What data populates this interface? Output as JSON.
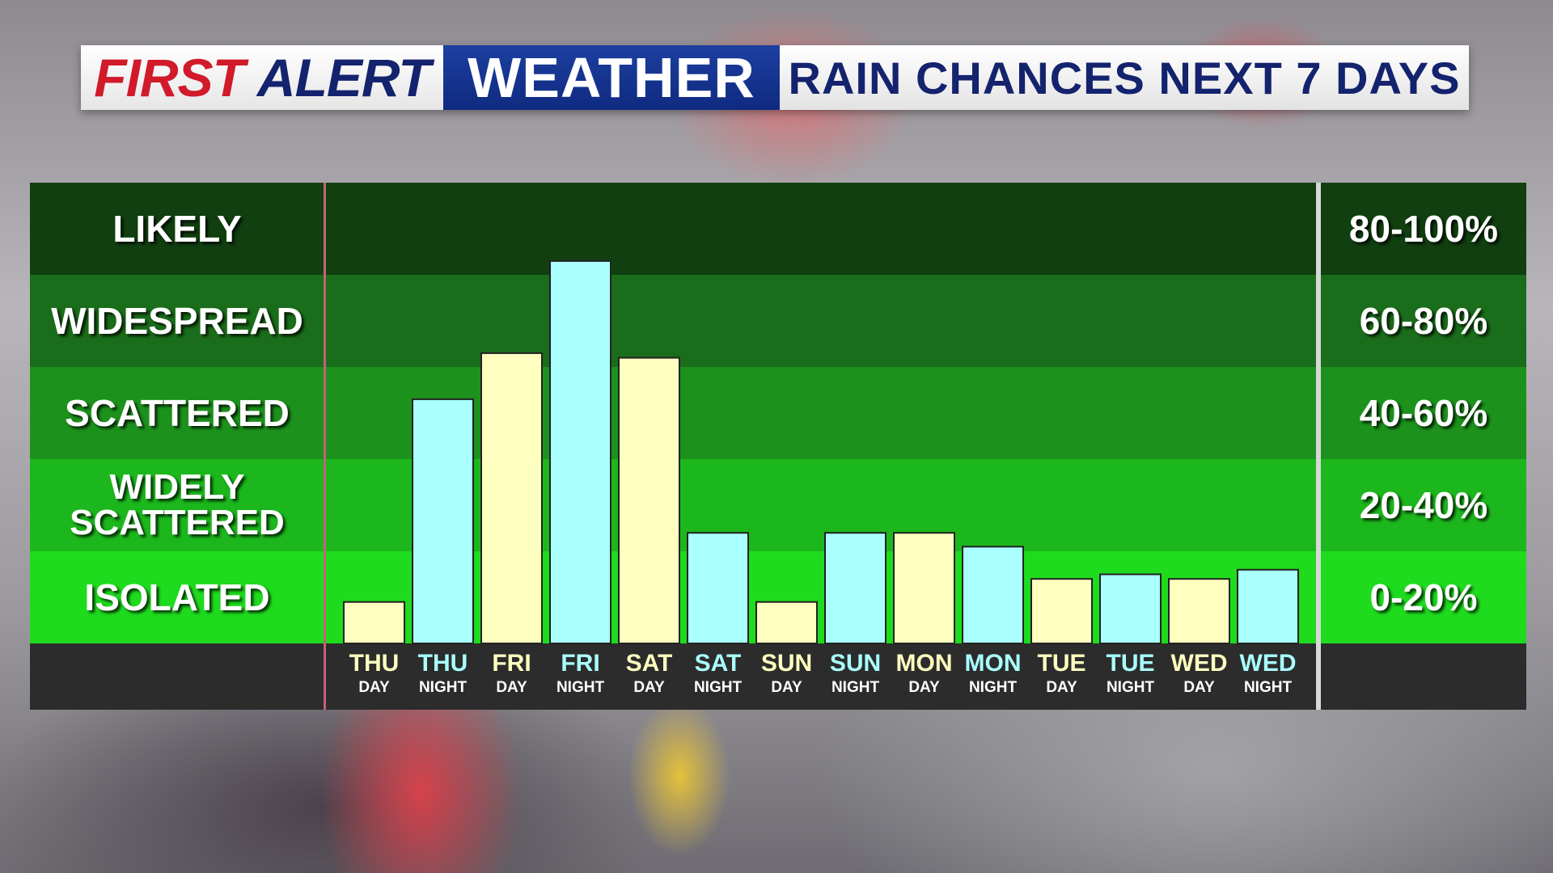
{
  "header": {
    "brand_first": "FIRST",
    "brand_alert": "ALERT",
    "brand_weather": "WEATHER",
    "title": "RAIN CHANCES NEXT 7 DAYS"
  },
  "categories_left": [
    "LIKELY",
    "WIDESPREAD",
    "SCATTERED",
    "WIDELY SCATTERED",
    "ISOLATED"
  ],
  "categories_right": [
    "80-100%",
    "60-80%",
    "40-60%",
    "20-40%",
    "0-20%"
  ],
  "colors": {
    "day_bar": "#ffffc0",
    "night_bar": "#aaffff",
    "band_likely": "#113f10",
    "band_widespread": "#1a6d1a",
    "band_scattered": "#1c921c",
    "band_widely_scattered": "#1cb71c",
    "band_isolated": "#1edb1e"
  },
  "chart_data": {
    "type": "bar",
    "title": "RAIN CHANCES NEXT 7 DAYS",
    "ylim": [
      0,
      100
    ],
    "categories": [
      {
        "day": "THU",
        "period": "DAY"
      },
      {
        "day": "THU",
        "period": "NIGHT"
      },
      {
        "day": "FRI",
        "period": "DAY"
      },
      {
        "day": "FRI",
        "period": "NIGHT"
      },
      {
        "day": "SAT",
        "period": "DAY"
      },
      {
        "day": "SAT",
        "period": "NIGHT"
      },
      {
        "day": "SUN",
        "period": "DAY"
      },
      {
        "day": "SUN",
        "period": "NIGHT"
      },
      {
        "day": "MON",
        "period": "DAY"
      },
      {
        "day": "MON",
        "period": "NIGHT"
      },
      {
        "day": "TUE",
        "period": "DAY"
      },
      {
        "day": "TUE",
        "period": "NIGHT"
      },
      {
        "day": "WED",
        "period": "DAY"
      },
      {
        "day": "WED",
        "period": "NIGHT"
      }
    ],
    "values": [
      9,
      53,
      63,
      83,
      62,
      24,
      9,
      24,
      24,
      21,
      14,
      15,
      14,
      16
    ],
    "grid": false
  }
}
